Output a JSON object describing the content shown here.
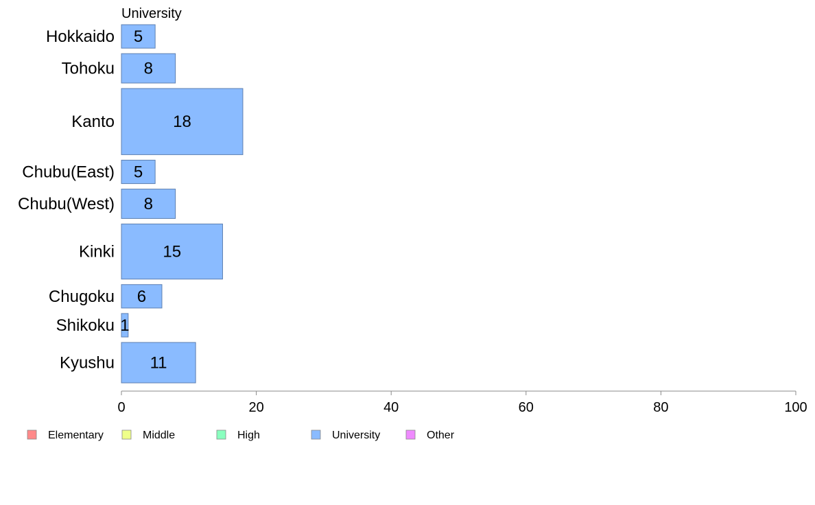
{
  "chart_data": {
    "type": "bar",
    "orientation": "horizontal",
    "series_title": "University",
    "categories": [
      "Hokkaido",
      "Tohoku",
      "Kanto",
      "Chubu(East)",
      "Chubu(West)",
      "Kinki",
      "Chugoku",
      "Shikoku",
      "Kyushu"
    ],
    "series": [
      {
        "name": "University",
        "values": [
          5,
          8,
          18,
          5,
          8,
          15,
          6,
          1,
          11
        ],
        "value_labels": [
          "5",
          "8",
          "18",
          "5",
          "8",
          "15",
          "6",
          "1",
          "11"
        ]
      }
    ],
    "xlim": [
      0,
      100
    ],
    "xticks": [
      "0",
      "20",
      "40",
      "60",
      "80",
      "100"
    ],
    "xtick_values": [
      0,
      20,
      40,
      60,
      80,
      100
    ],
    "grid": false,
    "legend_position": "bottom-left",
    "legend": [
      {
        "label": "Elementary",
        "color": "#ff8a8a"
      },
      {
        "label": "Middle",
        "color": "#efff8a"
      },
      {
        "label": "High",
        "color": "#8affbf"
      },
      {
        "label": "University",
        "color": "#8abbff"
      },
      {
        "label": "Other",
        "color": "#ef8aff"
      }
    ],
    "bar_color": "#8abbff",
    "bar_stroke": "#5d7fb0"
  }
}
